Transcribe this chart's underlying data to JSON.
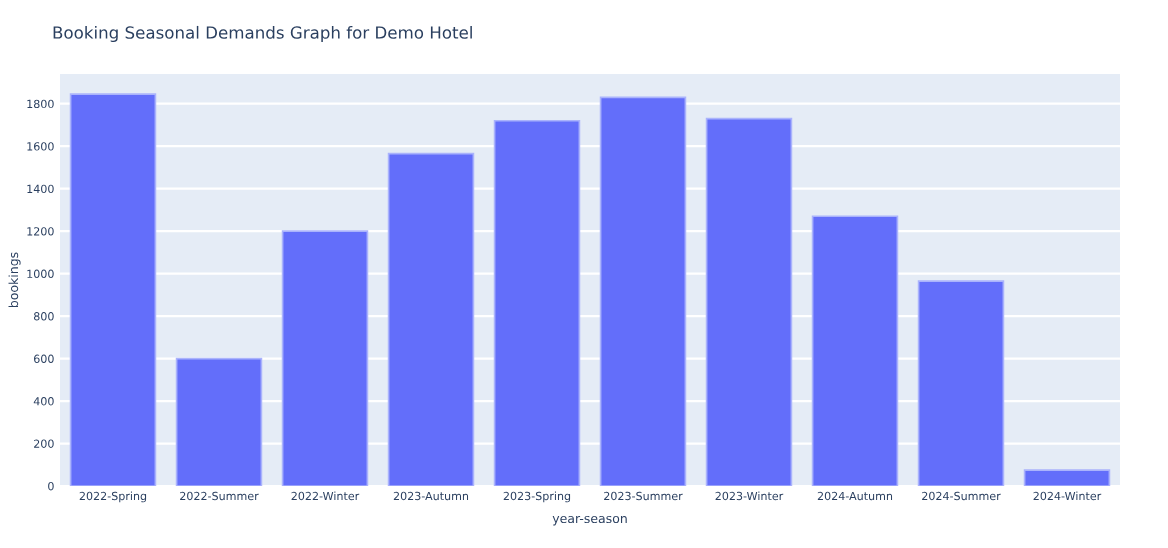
{
  "chart_data": {
    "type": "bar",
    "title": "Booking Seasonal Demands Graph for Demo Hotel",
    "xlabel": "year-season",
    "ylabel": "bookings",
    "categories": [
      "2022-Spring",
      "2022-Summer",
      "2022-Winter",
      "2023-Autumn",
      "2023-Spring",
      "2023-Summer",
      "2023-Winter",
      "2024-Autumn",
      "2024-Summer",
      "2024-Winter"
    ],
    "values": [
      1845,
      600,
      1200,
      1565,
      1720,
      1830,
      1730,
      1270,
      965,
      75
    ],
    "color": "#636efa",
    "ylim": [
      0,
      1940
    ],
    "yticks": [
      0,
      200,
      400,
      600,
      800,
      1000,
      1200,
      1400,
      1600,
      1800
    ],
    "grid": "y"
  }
}
